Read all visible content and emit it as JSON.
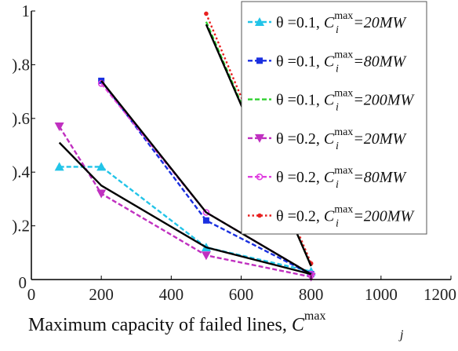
{
  "chart_data": {
    "type": "line",
    "title": "",
    "xlabel": "Maximum capacity of failed lines,",
    "xlabel_symbol": {
      "base": "C",
      "sup": "max",
      "sub": "j"
    },
    "ylabel": "",
    "xlim": [
      0,
      1200
    ],
    "ylim": [
      0,
      1
    ],
    "x_ticks": [
      0,
      200,
      400,
      600,
      800,
      1000,
      1200
    ],
    "x_tick_labels": [
      "0",
      "200",
      "400",
      "600",
      "800",
      "1000",
      "1200"
    ],
    "y_ticks": [
      0,
      0.2,
      0.4,
      0.6,
      0.8,
      1
    ],
    "y_tick_labels": [
      ").2",
      ").4",
      ").6",
      ").8",
      "1"
    ],
    "y_tick_label_values": [
      0.2,
      0.4,
      0.6,
      0.8,
      1
    ],
    "grid": false,
    "legend_position": "top-right",
    "series": [
      {
        "name": "θ =0.1, C_i^max=20MW",
        "theta": "θ =0.1,",
        "cap": "=20MW",
        "color": "#22c4e8",
        "marker": "triangle-up",
        "dash": "dashed",
        "x": [
          80,
          200,
          500,
          800
        ],
        "y": [
          0.42,
          0.42,
          0.12,
          0.03
        ]
      },
      {
        "name": "θ =0.1, C_i^max=80MW",
        "theta": "θ =0.1,",
        "cap": "=80MW",
        "color": "#1a2fe0",
        "marker": "square",
        "dash": "dashed",
        "x": [
          200,
          500,
          800
        ],
        "y": [
          0.74,
          0.22,
          0.02
        ]
      },
      {
        "name": "θ =0.1, C_i^max=200MW",
        "theta": "θ =0.1,",
        "cap": "=200MW",
        "color": "#2ed02e",
        "marker": "none",
        "dash": "dashed",
        "x": [
          500,
          800
        ],
        "y": [
          0.96,
          0.05
        ]
      },
      {
        "name": "θ =0.2, C_i^max=20MW",
        "theta": "θ =0.2,",
        "cap": "=20MW",
        "color": "#c030c0",
        "marker": "triangle-down",
        "dash": "dashed",
        "x": [
          80,
          200,
          500,
          800
        ],
        "y": [
          0.57,
          0.32,
          0.09,
          0.01
        ]
      },
      {
        "name": "θ =0.2, C_i^max=80MW",
        "theta": "θ =0.2,",
        "cap": "=80MW",
        "color": "#e040e0",
        "marker": "circle",
        "dash": "dashed",
        "x": [
          200,
          500,
          800
        ],
        "y": [
          0.73,
          0.25,
          0.02
        ]
      },
      {
        "name": "θ =0.2, C_i^max=200MW",
        "theta": "θ =0.2,",
        "cap": "=200MW",
        "color": "#e82020",
        "marker": "dot",
        "dash": "dotted",
        "x": [
          500,
          800
        ],
        "y": [
          0.99,
          0.06
        ]
      }
    ],
    "fit_lines": [
      {
        "color": "#000000",
        "x": [
          80,
          200,
          500,
          800
        ],
        "y": [
          0.51,
          0.35,
          0.12,
          0.02
        ]
      },
      {
        "color": "#000000",
        "x": [
          200,
          500,
          800
        ],
        "y": [
          0.74,
          0.25,
          0.02
        ]
      },
      {
        "color": "#000000",
        "x": [
          500,
          800
        ],
        "y": [
          0.95,
          0.05
        ]
      }
    ]
  }
}
